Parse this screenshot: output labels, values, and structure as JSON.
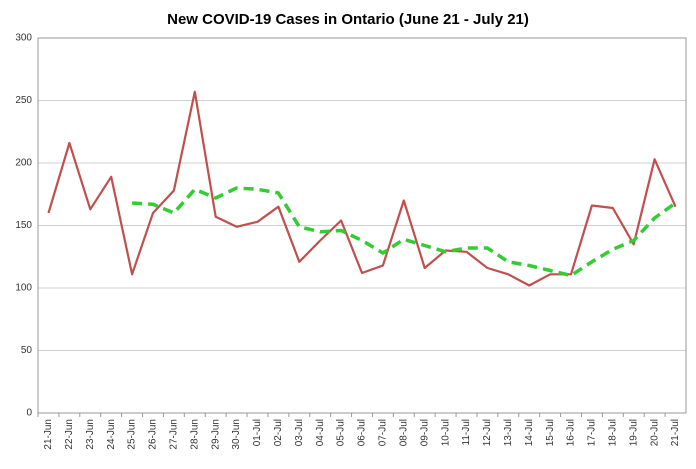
{
  "chart_data": {
    "type": "line",
    "title": "New COVID-19 Cases in Ontario (June 21 - July 21)",
    "categories": [
      "21-Jun",
      "22-Jun",
      "23-Jun",
      "24-Jun",
      "25-Jun",
      "26-Jun",
      "27-Jun",
      "28-Jun",
      "29-Jun",
      "30-Jun",
      "01-Jul",
      "02-Jul",
      "03-Jul",
      "04-Jul",
      "05-Jul",
      "06-Jul",
      "07-Jul",
      "08-Jul",
      "09-Jul",
      "10-Jul",
      "11-Jul",
      "12-Jul",
      "13-Jul",
      "14-Jul",
      "15-Jul",
      "16-Jul",
      "17-Jul",
      "18-Jul",
      "19-Jul",
      "20-Jul",
      "21-Jul"
    ],
    "series": [
      {
        "color": "#c0504d",
        "dashed": false,
        "values": [
          160,
          216,
          163,
          189,
          111,
          160,
          178,
          257,
          157,
          149,
          153,
          165,
          121,
          138,
          154,
          112,
          118,
          170,
          116,
          130,
          129,
          116,
          111,
          102,
          111,
          111,
          166,
          164,
          135,
          203,
          165
        ]
      },
      {
        "color": "#33cc33",
        "dashed": true,
        "values": [
          null,
          null,
          null,
          null,
          168,
          167,
          160,
          179,
          172,
          180,
          179,
          176,
          149,
          145,
          146,
          138,
          128,
          139,
          134,
          129,
          132,
          132,
          121,
          118,
          114,
          110,
          121,
          131,
          138,
          156,
          168
        ]
      }
    ],
    "ylim": [
      0,
      300
    ],
    "yticks": [
      0,
      50,
      100,
      150,
      200,
      250,
      300
    ],
    "grid": true
  }
}
